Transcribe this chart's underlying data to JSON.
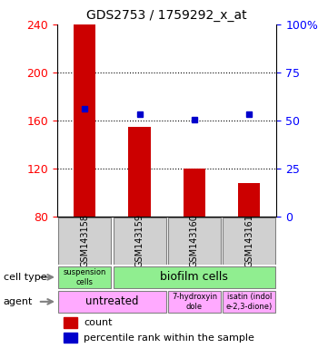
{
  "title": "GDS2753 / 1759292_x_at",
  "samples": [
    "GSM143158",
    "GSM143159",
    "GSM143160",
    "GSM143161"
  ],
  "bar_values": [
    240,
    155,
    120,
    108
  ],
  "bar_bottom": 80,
  "bar_color": "#cc0000",
  "dot_values": [
    170,
    165,
    161,
    165
  ],
  "dot_color": "#0000cc",
  "left_yticks": [
    80,
    120,
    160,
    200,
    240
  ],
  "right_yticks": [
    0,
    25,
    50,
    75,
    100
  ],
  "right_ylabels": [
    "0",
    "25",
    "50",
    "75",
    "100%"
  ],
  "ylim": [
    80,
    240
  ],
  "right_ylim": [
    0,
    100
  ],
  "figure_bg": "white",
  "green_color": "#90ee90",
  "pink_color": "#ffaaff",
  "gray_color": "#d0d0d0"
}
